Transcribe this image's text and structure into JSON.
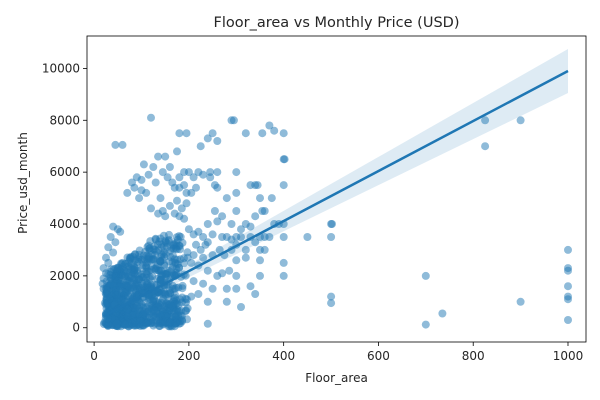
{
  "chart_data": {
    "type": "scatter",
    "title": "Floor_area vs Monthly Price (USD)",
    "xlabel": "Floor_area",
    "ylabel": "Price_usd_month",
    "xlim": [
      -15,
      1038
    ],
    "ylim": [
      -550,
      11250
    ],
    "xticks": [
      0,
      200,
      400,
      600,
      800,
      1000
    ],
    "yticks": [
      0,
      2000,
      4000,
      6000,
      8000,
      10000
    ],
    "grid": false,
    "point_color": "#1f77b4",
    "line_color": "#1f77b4",
    "band_color": "#1f77b4",
    "regression": {
      "x_start": 20,
      "x_end": 1000,
      "y_start": 450,
      "y_end": 9900,
      "ci_start": [
        350,
        550
      ],
      "ci_end": [
        9050,
        10750
      ]
    },
    "cluster": {
      "x_center": 70,
      "x_spread": 70,
      "y_center": 1200,
      "y_spread": 3500,
      "count": 900
    },
    "points": [
      [
        45,
        7050
      ],
      [
        120,
        8100
      ],
      [
        290,
        8000
      ],
      [
        295,
        8000
      ],
      [
        180,
        7500
      ],
      [
        195,
        7500
      ],
      [
        225,
        7000
      ],
      [
        240,
        7300
      ],
      [
        250,
        7500
      ],
      [
        320,
        7500
      ],
      [
        370,
        7800
      ],
      [
        380,
        7600
      ],
      [
        400,
        7500
      ],
      [
        355,
        7500
      ],
      [
        135,
        6600
      ],
      [
        150,
        6600
      ],
      [
        175,
        6800
      ],
      [
        220,
        6000
      ],
      [
        245,
        6000
      ],
      [
        260,
        7200
      ],
      [
        400,
        6500
      ],
      [
        402,
        6500
      ],
      [
        125,
        6200
      ],
      [
        160,
        6200
      ],
      [
        180,
        5800
      ],
      [
        190,
        6000
      ],
      [
        200,
        6000
      ],
      [
        210,
        5800
      ],
      [
        230,
        5900
      ],
      [
        245,
        5800
      ],
      [
        260,
        6000
      ],
      [
        300,
        6000
      ],
      [
        330,
        5500
      ],
      [
        340,
        5500
      ],
      [
        345,
        5500
      ],
      [
        400,
        5500
      ],
      [
        80,
        5600
      ],
      [
        85,
        5400
      ],
      [
        95,
        5000
      ],
      [
        100,
        5300
      ],
      [
        110,
        5200
      ],
      [
        140,
        5000
      ],
      [
        170,
        5400
      ],
      [
        180,
        5400
      ],
      [
        205,
        5200
      ],
      [
        215,
        5400
      ],
      [
        255,
        5500
      ],
      [
        260,
        5400
      ],
      [
        280,
        5000
      ],
      [
        300,
        5200
      ],
      [
        350,
        5000
      ],
      [
        360,
        4500
      ],
      [
        375,
        5000
      ],
      [
        255,
        4500
      ],
      [
        270,
        4300
      ],
      [
        300,
        4500
      ],
      [
        340,
        4300
      ],
      [
        355,
        4500
      ],
      [
        380,
        4000
      ],
      [
        390,
        4000
      ],
      [
        400,
        4000
      ],
      [
        500,
        4000
      ],
      [
        502,
        4000
      ],
      [
        240,
        4000
      ],
      [
        260,
        4100
      ],
      [
        290,
        4000
      ],
      [
        310,
        3800
      ],
      [
        320,
        4000
      ],
      [
        330,
        3900
      ],
      [
        200,
        3800
      ],
      [
        210,
        3600
      ],
      [
        220,
        3700
      ],
      [
        230,
        3500
      ],
      [
        240,
        3300
      ],
      [
        250,
        3600
      ],
      [
        270,
        3500
      ],
      [
        280,
        3500
      ],
      [
        290,
        3400
      ],
      [
        300,
        3500
      ],
      [
        310,
        3500
      ],
      [
        330,
        3500
      ],
      [
        340,
        3300
      ],
      [
        350,
        3500
      ],
      [
        360,
        3500
      ],
      [
        370,
        3500
      ],
      [
        400,
        3500
      ],
      [
        450,
        3500
      ],
      [
        500,
        3500
      ],
      [
        215,
        3200
      ],
      [
        225,
        3000
      ],
      [
        235,
        3200
      ],
      [
        265,
        3000
      ],
      [
        290,
        3000
      ],
      [
        300,
        3200
      ],
      [
        320,
        3000
      ],
      [
        350,
        3000
      ],
      [
        360,
        3000
      ],
      [
        210,
        2800
      ],
      [
        230,
        2700
      ],
      [
        250,
        2800
      ],
      [
        275,
        2800
      ],
      [
        300,
        2600
      ],
      [
        320,
        2700
      ],
      [
        350,
        2600
      ],
      [
        400,
        2500
      ],
      [
        205,
        2500
      ],
      [
        220,
        2400
      ],
      [
        240,
        2200
      ],
      [
        260,
        2000
      ],
      [
        270,
        2100
      ],
      [
        285,
        2200
      ],
      [
        300,
        2000
      ],
      [
        350,
        2000
      ],
      [
        400,
        2000
      ],
      [
        210,
        1800
      ],
      [
        230,
        1700
      ],
      [
        250,
        1500
      ],
      [
        280,
        1500
      ],
      [
        300,
        1500
      ],
      [
        330,
        1600
      ],
      [
        205,
        1200
      ],
      [
        220,
        1300
      ],
      [
        240,
        1000
      ],
      [
        280,
        1000
      ],
      [
        310,
        800
      ],
      [
        340,
        1300
      ],
      [
        500,
        1200
      ],
      [
        500,
        950
      ],
      [
        700,
        2000
      ],
      [
        700,
        120
      ],
      [
        735,
        550
      ],
      [
        900,
        1000
      ],
      [
        1000,
        3000
      ],
      [
        1000,
        2300
      ],
      [
        1000,
        2200
      ],
      [
        1000,
        1600
      ],
      [
        1000,
        1200
      ],
      [
        1000,
        1100
      ],
      [
        1000,
        300
      ],
      [
        825,
        8000
      ],
      [
        825,
        7000
      ],
      [
        900,
        8000
      ],
      [
        150,
        200
      ],
      [
        160,
        200
      ],
      [
        240,
        150
      ],
      [
        130,
        300
      ],
      [
        110,
        150
      ],
      [
        60,
        7050
      ],
      [
        70,
        5200
      ],
      [
        90,
        5800
      ],
      [
        100,
        5700
      ],
      [
        105,
        6300
      ],
      [
        115,
        5900
      ],
      [
        130,
        5600
      ],
      [
        145,
        6000
      ],
      [
        155,
        5800
      ],
      [
        165,
        5600
      ],
      [
        190,
        5500
      ],
      [
        195,
        5200
      ],
      [
        175,
        4900
      ],
      [
        185,
        4600
      ],
      [
        195,
        4800
      ],
      [
        145,
        4500
      ],
      [
        160,
        4700
      ],
      [
        170,
        4400
      ],
      [
        180,
        4300
      ],
      [
        190,
        4200
      ],
      [
        150,
        4300
      ],
      [
        120,
        4600
      ],
      [
        135,
        4400
      ],
      [
        40,
        3900
      ],
      [
        50,
        3800
      ],
      [
        55,
        3700
      ],
      [
        35,
        3500
      ],
      [
        45,
        3300
      ],
      [
        30,
        3100
      ],
      [
        40,
        2900
      ],
      [
        25,
        2700
      ],
      [
        30,
        2500
      ],
      [
        20,
        2300
      ],
      [
        25,
        2100
      ],
      [
        20,
        1900
      ],
      [
        18,
        1700
      ],
      [
        20,
        1500
      ]
    ]
  }
}
